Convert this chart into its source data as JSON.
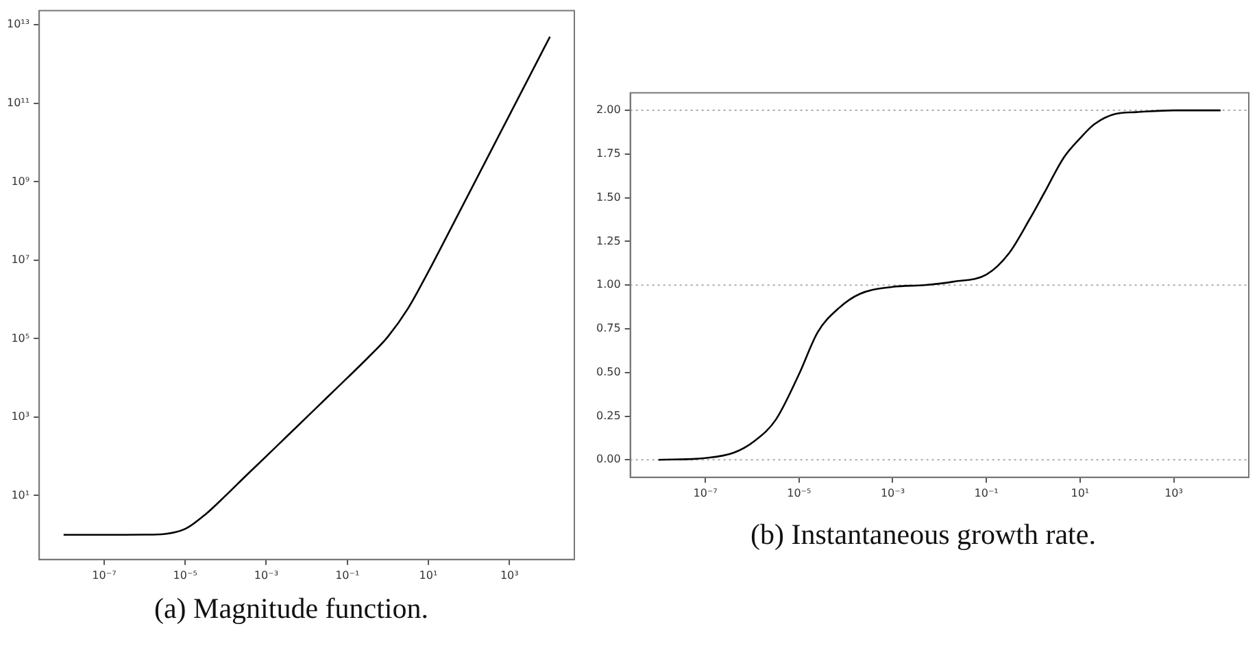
{
  "chart_data": [
    {
      "type": "line",
      "title": "(a) Magnitude function.",
      "log": "xy",
      "x": [
        1e-08,
        3.16e-08,
        1e-07,
        3.16e-07,
        1e-06,
        3.16e-06,
        1e-05,
        3.16e-05,
        0.0001,
        0.000316,
        0.001,
        0.00316,
        0.01,
        0.0316,
        0.1,
        0.316,
        1,
        3.16,
        10,
        31.6,
        100,
        316,
        1000,
        3162,
        10000
      ],
      "series": [
        {
          "color": "#000000",
          "values": [
            1,
            1,
            1,
            1,
            1.005,
            1.05,
            1.41,
            3.3,
            10,
            32,
            100,
            316,
            1000,
            3160,
            10000,
            32000,
            112000,
            592000,
            5100000,
            50000000,
            500000000,
            5000000000,
            50000000000,
            500000000000,
            5000000000000
          ]
        }
      ],
      "xlim": [
        2.5e-09,
        40000
      ],
      "ylim": [
        0.234,
        23000000000000.0
      ],
      "xticks": [
        {
          "value": 1e-07,
          "label": "10⁻⁷"
        },
        {
          "value": 1e-05,
          "label": "10⁻⁵"
        },
        {
          "value": 0.001,
          "label": "10⁻³"
        },
        {
          "value": 0.1,
          "label": "10⁻¹"
        },
        {
          "value": 10,
          "label": "10¹"
        },
        {
          "value": 1000,
          "label": "10³"
        }
      ],
      "yticks": [
        {
          "value": 10,
          "label": "10¹"
        },
        {
          "value": 1000,
          "label": "10³"
        },
        {
          "value": 100000,
          "label": "10⁵"
        },
        {
          "value": 10000000,
          "label": "10⁷"
        },
        {
          "value": 1000000000,
          "label": "10⁹"
        },
        {
          "value": 100000000000,
          "label": "10¹¹"
        },
        {
          "value": 10000000000000,
          "label": "10¹³"
        }
      ]
    },
    {
      "type": "line",
      "title": "(b) Instantaneous growth rate.",
      "log": "x",
      "x": [
        1e-08,
        1e-07,
        4e-07,
        1.15e-06,
        3.2e-06,
        1e-05,
        2.5e-05,
        7.2e-05,
        0.0002,
        0.001,
        0.0047,
        0.02,
        0.1,
        0.3,
        0.85,
        1.74,
        4.5,
        10,
        20,
        57,
        160,
        1000,
        10000
      ],
      "series": [
        {
          "color": "#000000",
          "values": [
            0,
            0.01,
            0.04,
            0.11,
            0.23,
            0.49,
            0.73,
            0.87,
            0.95,
            0.99,
            1.0,
            1.02,
            1.06,
            1.18,
            1.38,
            1.53,
            1.73,
            1.84,
            1.92,
            1.98,
            1.99,
            2.0,
            2.0
          ]
        }
      ],
      "xlim": [
        2.5e-09,
        40000
      ],
      "ylim": [
        -0.1,
        2.1
      ],
      "xticks": [
        {
          "value": 1e-07,
          "label": "10⁻⁷"
        },
        {
          "value": 1e-05,
          "label": "10⁻⁵"
        },
        {
          "value": 0.001,
          "label": "10⁻³"
        },
        {
          "value": 0.1,
          "label": "10⁻¹"
        },
        {
          "value": 10,
          "label": "10¹"
        },
        {
          "value": 1000,
          "label": "10³"
        }
      ],
      "yticks": [
        {
          "value": 0,
          "label": "0.00"
        },
        {
          "value": 0.25,
          "label": "0.25"
        },
        {
          "value": 0.5,
          "label": "0.50"
        },
        {
          "value": 0.75,
          "label": "0.75"
        },
        {
          "value": 1,
          "label": "1.00"
        },
        {
          "value": 1.25,
          "label": "1.25"
        },
        {
          "value": 1.5,
          "label": "1.50"
        },
        {
          "value": 1.75,
          "label": "1.75"
        },
        {
          "value": 2,
          "label": "2.00"
        }
      ],
      "ref_lines": [
        {
          "axis": "y",
          "value": 0,
          "color": "#aaaaaa",
          "line_style": "dotted"
        },
        {
          "axis": "y",
          "value": 1,
          "color": "#aaaaaa",
          "line_style": "dotted"
        },
        {
          "axis": "y",
          "value": 2,
          "color": "#aaaaaa",
          "line_style": "dotted"
        }
      ]
    }
  ]
}
